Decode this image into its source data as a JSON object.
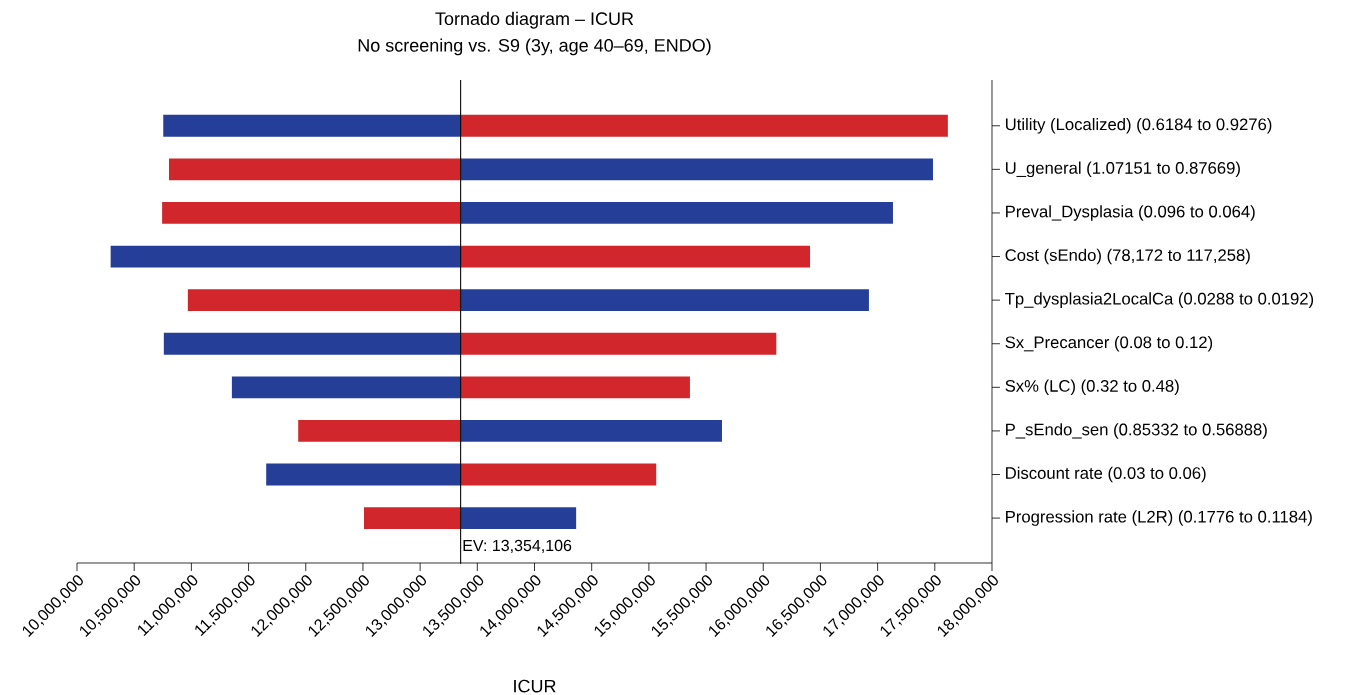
{
  "chart_data": {
    "type": "bar",
    "orientation": "horizontal",
    "title": "Tornado diagram – ICUR",
    "subtitle": "No screening vs. S9 (3y, age 40–69, ENDO)",
    "xlabel": "ICUR",
    "categories": [
      "Utility (Localized) (0.6184 to 0.9276)",
      "U_general (1.07151 to 0.87669)",
      "Preval_Dysplasia (0.096 to 0.064)",
      "Cost (sEndo) (78,172 to 117,258)",
      "Tp_dysplasia2LocalCa (0.0288 to 0.0192)",
      "Sx_Precancer (0.08 to 0.12)",
      "Sx% (LC) (0.32 to 0.48)",
      "P_sEndo_sen (0.85332 to 0.56888)",
      "Discount rate (0.03 to 0.06)",
      "Progression rate (L2R) (0.1776 to 0.1184)"
    ],
    "series": [
      {
        "values": [
          -2600000,
          -2550000,
          -2610000,
          -3060000,
          -2385000,
          -2595000,
          -2000000,
          -1420000,
          -1700000,
          -845000
        ],
        "base": [
          13354106,
          13354106,
          13354106,
          13354106,
          13354106,
          13354106,
          13354106,
          13354106,
          13354106,
          13354106
        ],
        "colors": [
          "#253f99",
          "#d2262d",
          "#d2262d",
          "#253f99",
          "#d2262d",
          "#253f99",
          "#253f99",
          "#d2262d",
          "#253f99",
          "#d2262d"
        ]
      },
      {
        "values": [
          4260000,
          4130000,
          3780000,
          3055000,
          3570000,
          2760000,
          2005000,
          2285000,
          1710000,
          1010000
        ],
        "base": [
          13354106,
          13354106,
          13354106,
          13354106,
          13354106,
          13354106,
          13354106,
          13354106,
          13354106,
          13354106
        ],
        "colors": [
          "#d2262d",
          "#253f99",
          "#253f99",
          "#d2262d",
          "#253f99",
          "#d2262d",
          "#d2262d",
          "#253f99",
          "#d2262d",
          "#253f99"
        ]
      }
    ],
    "xlim": [
      10000000,
      18000000
    ],
    "xticks": [
      {
        "value": 10000000,
        "label": "10,000,000"
      },
      {
        "value": 10500000,
        "label": "10,500,000"
      },
      {
        "value": 11000000,
        "label": "11,000,000"
      },
      {
        "value": 11500000,
        "label": "11,500,000"
      },
      {
        "value": 12000000,
        "label": "12,000,000"
      },
      {
        "value": 12500000,
        "label": "12,500,000"
      },
      {
        "value": 13000000,
        "label": "13,000,000"
      },
      {
        "value": 13500000,
        "label": "13,500,000"
      },
      {
        "value": 14000000,
        "label": "14,000,000"
      },
      {
        "value": 14500000,
        "label": "14,500,000"
      },
      {
        "value": 15000000,
        "label": "15,000,000"
      },
      {
        "value": 15500000,
        "label": "15,500,000"
      },
      {
        "value": 16000000,
        "label": "16,000,000"
      },
      {
        "value": 16500000,
        "label": "16,500,000"
      },
      {
        "value": 17000000,
        "label": "17,000,000"
      },
      {
        "value": 17500000,
        "label": "17,500,000"
      },
      {
        "value": 18000000,
        "label": "18,000,000"
      }
    ],
    "ref_lines": [
      {
        "axis": "x",
        "value": 13354106,
        "label": "EV: 13,354,106"
      }
    ]
  }
}
